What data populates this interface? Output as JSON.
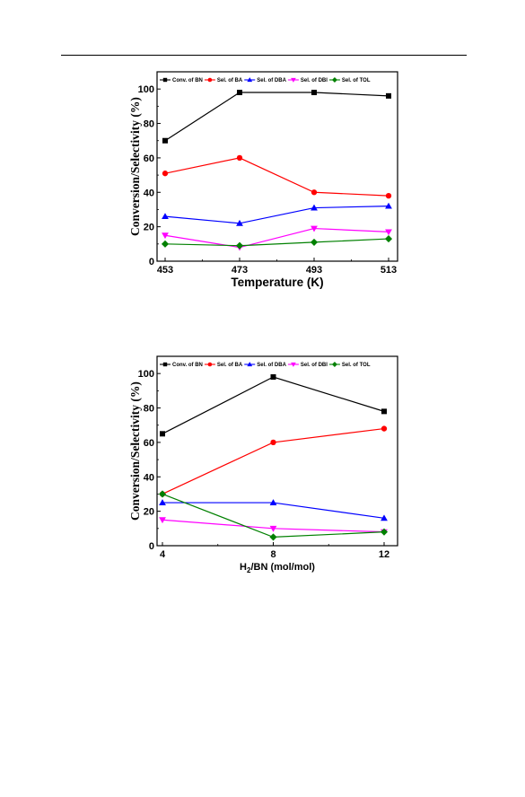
{
  "chart_data": [
    {
      "type": "line",
      "title": "",
      "xlabel": "Temperature (K)",
      "ylabel": "Conversion/Selectivity (%)",
      "x": [
        453,
        473,
        493,
        513
      ],
      "x_tick_labels": [
        "453",
        "473",
        "493",
        "513"
      ],
      "y_ticks": [
        0,
        20,
        40,
        60,
        80,
        100
      ],
      "ylim": [
        0,
        110
      ],
      "legend_position": "top",
      "series": [
        {
          "name": "Conv. of BN",
          "color": "#000000",
          "marker": "square",
          "values": [
            70,
            98,
            98,
            96
          ]
        },
        {
          "name": "Sel. of BA",
          "color": "#ff0000",
          "marker": "circle",
          "values": [
            51,
            60,
            40,
            38
          ]
        },
        {
          "name": "Sel. of DBA",
          "color": "#0000ff",
          "marker": "triangle-up",
          "values": [
            26,
            22,
            31,
            32
          ]
        },
        {
          "name": "Sel. of DBI",
          "color": "#ff00ff",
          "marker": "triangle-down",
          "values": [
            15,
            8,
            19,
            17
          ]
        },
        {
          "name": "Sel. of TOL",
          "color": "#008000",
          "marker": "diamond",
          "values": [
            10,
            9,
            11,
            13
          ]
        }
      ]
    },
    {
      "type": "line",
      "title": "",
      "xlabel": "H2/BN (mol/mol)",
      "xlabel_main": "H",
      "xlabel_sub": "2",
      "xlabel_rest": "/BN (mol/mol)",
      "ylabel": "Conversion/Selectivity (%)",
      "x": [
        4,
        8,
        12
      ],
      "x_tick_labels": [
        "4",
        "8",
        "12"
      ],
      "y_ticks": [
        0,
        20,
        40,
        60,
        80,
        100
      ],
      "ylim": [
        0,
        110
      ],
      "legend_position": "top",
      "series": [
        {
          "name": "Conv. of BN",
          "color": "#000000",
          "marker": "square",
          "values": [
            65,
            98,
            78
          ]
        },
        {
          "name": "Sel. of BA",
          "color": "#ff0000",
          "marker": "circle",
          "values": [
            30,
            60,
            68
          ]
        },
        {
          "name": "Sel. of DBA",
          "color": "#0000ff",
          "marker": "triangle-up",
          "values": [
            25,
            25,
            16
          ]
        },
        {
          "name": "Sel. of DBI",
          "color": "#ff00ff",
          "marker": "triangle-down",
          "values": [
            15,
            10,
            8
          ]
        },
        {
          "name": "Sel. of TOL",
          "color": "#008000",
          "marker": "diamond",
          "values": [
            30,
            5,
            8
          ]
        }
      ]
    }
  ]
}
